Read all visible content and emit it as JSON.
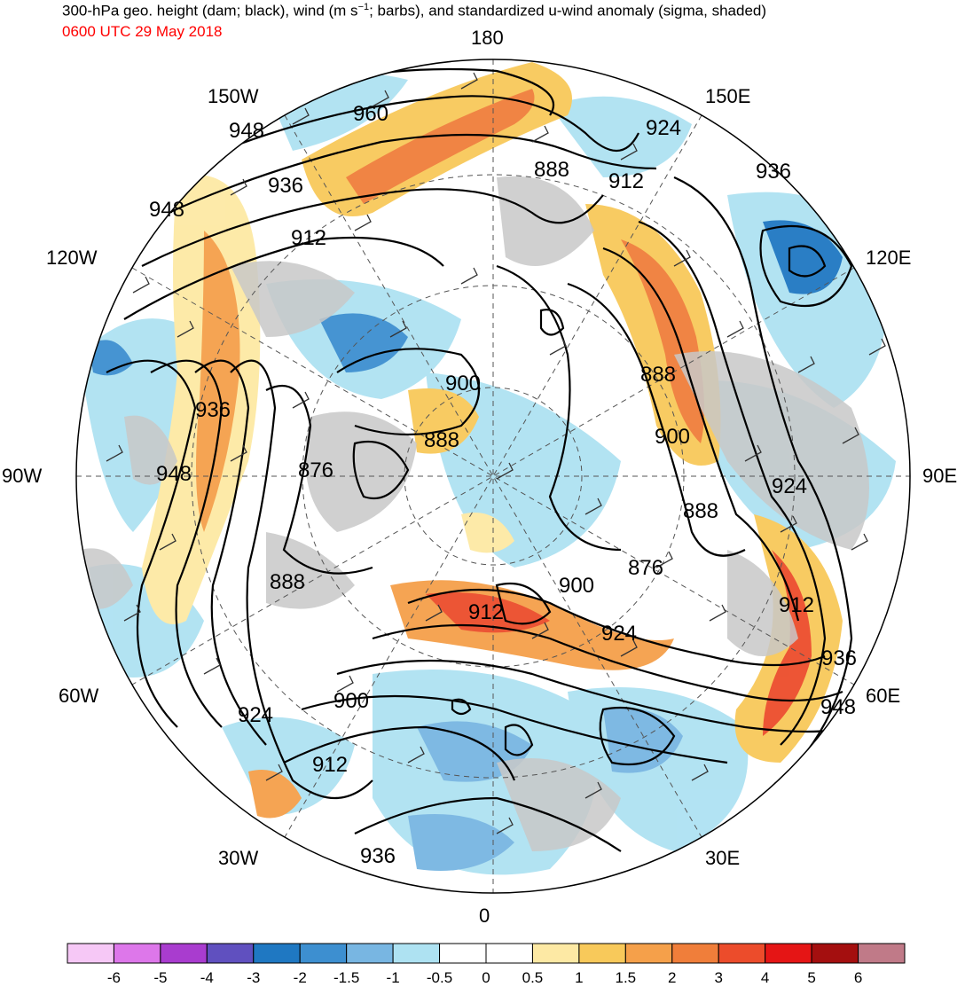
{
  "header": {
    "title_prefix": "300-hPa geo. height (dam; black), wind (m s",
    "title_sup": "−1",
    "title_suffix": "; barbs), and standardized u-wind anomaly (sigma, shaded)",
    "valid_time": "0600 UTC 29 May 2018",
    "valid_time_color": "#ff0000"
  },
  "map": {
    "projection": "north-polar-stereographic",
    "longitude_labels": {
      "north": "180",
      "south": "0",
      "east": "90E",
      "west": "90W",
      "nw_150": "150W",
      "ne_150": "150E",
      "nw_120": "120W",
      "ne_120": "120E",
      "sw_60": "60W",
      "se_60": "60E",
      "sw_30": "30W",
      "se_30": "30E"
    },
    "height_contour_labels": [
      "960",
      "948",
      "948",
      "936",
      "912",
      "888",
      "924",
      "912",
      "936",
      "936",
      "948",
      "876",
      "900",
      "888",
      "888",
      "900",
      "924",
      "888",
      "876",
      "900",
      "912",
      "924",
      "912",
      "936",
      "948",
      "924",
      "900",
      "912",
      "936"
    ],
    "colors": {
      "land": "#c8c8c8",
      "ocean": "#ffffff",
      "contour": "#000000",
      "barb": "#333333"
    }
  },
  "colorbar": {
    "colors": [
      "#f6c8f6",
      "#dd77ea",
      "#a93ccf",
      "#6050bf",
      "#1f78c2",
      "#3d8fd0",
      "#78b6e2",
      "#aee2f2",
      "#ffffff",
      "#ffffff",
      "#fde9a4",
      "#f8c95a",
      "#f5a04a",
      "#f07e3a",
      "#ec4c2b",
      "#e51515",
      "#a40f0f",
      "#c07a88"
    ],
    "tick_labels": [
      "-6",
      "-5",
      "-4",
      "-3",
      "-2",
      "-1.5",
      "-1",
      "-0.5",
      "0",
      "0.5",
      "1",
      "1.5",
      "2",
      "3",
      "4",
      "5",
      "6"
    ]
  }
}
